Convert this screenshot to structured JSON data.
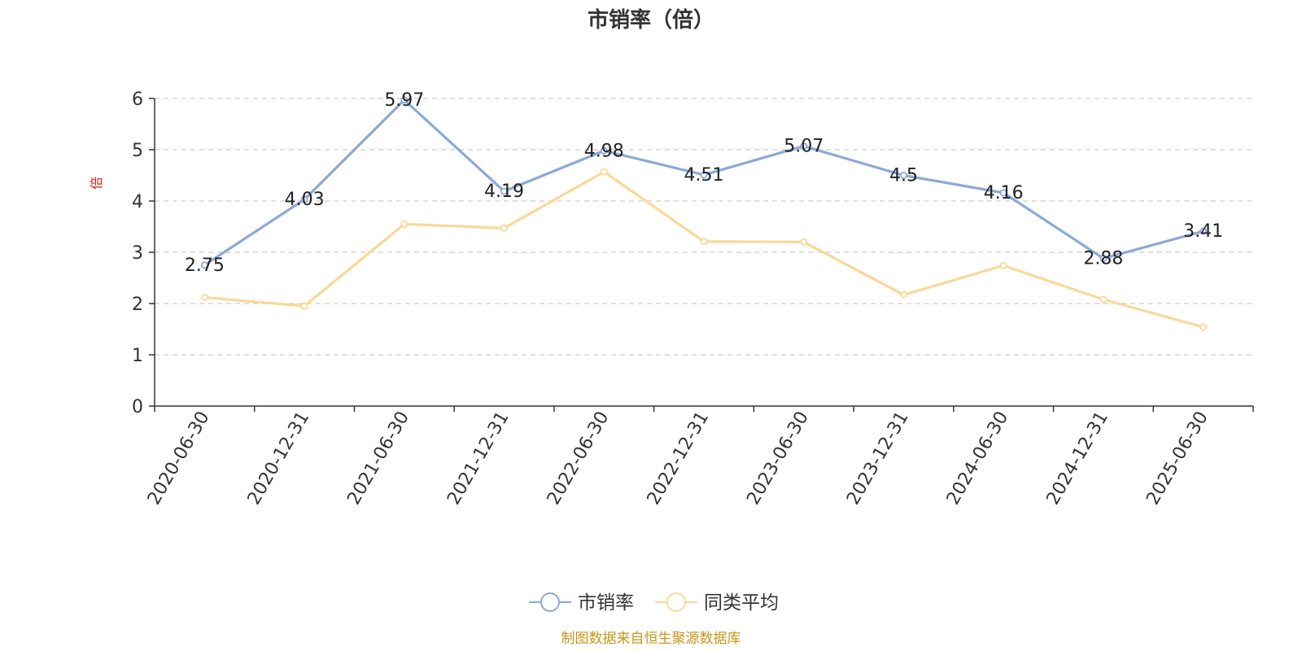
{
  "title": "市销率（倍）",
  "source_note": "制图数据来自恒生聚源数据库",
  "colors": {
    "series_main": "#8aaad6",
    "series_avg": "#f9d898",
    "unit_label": "#dd2222",
    "axis": "#333333",
    "grid": "#cccccc",
    "source": "#c8951a"
  },
  "chart_data": {
    "type": "line",
    "title": "市销率（倍）",
    "ylabel": "倍",
    "xlabel": "",
    "ylim": [
      0,
      6
    ],
    "yticks": [
      0,
      1,
      2,
      3,
      4,
      5,
      6
    ],
    "grid": true,
    "legend_position": "bottom",
    "categories": [
      "2020-06-30",
      "2020-12-31",
      "2021-06-30",
      "2021-12-31",
      "2022-06-30",
      "2022-12-31",
      "2023-06-30",
      "2023-12-31",
      "2024-06-30",
      "2024-12-31",
      "2025-06-30"
    ],
    "series": [
      {
        "name": "市销率",
        "values": [
          2.75,
          4.03,
          5.97,
          4.19,
          4.98,
          4.51,
          5.07,
          4.5,
          4.16,
          2.88,
          3.41
        ],
        "labels": [
          "2.75",
          "4.03",
          "5.97",
          "4.19",
          "4.98",
          "4.51",
          "5.07",
          "4.5",
          "4.16",
          "2.88",
          "3.41"
        ],
        "show_labels": true
      },
      {
        "name": "同类平均",
        "values": [
          2.12,
          1.95,
          3.55,
          3.47,
          4.57,
          3.21,
          3.2,
          2.17,
          2.74,
          2.08,
          1.54
        ],
        "show_labels": false
      }
    ]
  }
}
